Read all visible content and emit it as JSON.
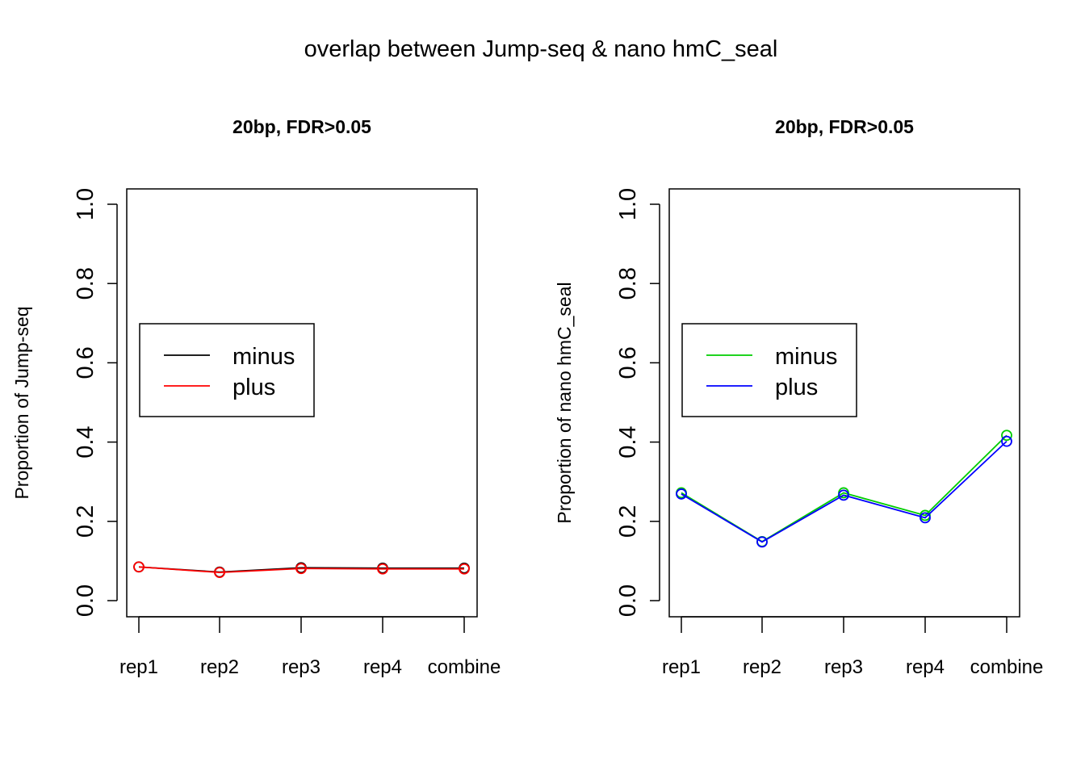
{
  "title": "overlap between Jump-seq & nano hmC_seal",
  "chart_data": [
    {
      "type": "line",
      "title": "20bp, FDR>0.05",
      "xlabel": "",
      "ylabel": "Proportion of Jump-seq",
      "categories": [
        "rep1",
        "rep2",
        "rep3",
        "rep4",
        "combine"
      ],
      "ylim": [
        0,
        1
      ],
      "yticks": [
        "0.0",
        "0.2",
        "0.4",
        "0.6",
        "0.8",
        "1.0"
      ],
      "legend_position": "left",
      "grid": false,
      "series": [
        {
          "name": "minus",
          "color": "#000000",
          "values": [
            0.085,
            0.072,
            0.083,
            0.082,
            0.082
          ]
        },
        {
          "name": "plus",
          "color": "#ff0000",
          "values": [
            0.085,
            0.071,
            0.081,
            0.08,
            0.08
          ]
        }
      ]
    },
    {
      "type": "line",
      "title": "20bp, FDR>0.05",
      "xlabel": "",
      "ylabel": "Proportion of nano hmC_seal",
      "categories": [
        "rep1",
        "rep2",
        "rep3",
        "rep4",
        "combine"
      ],
      "ylim": [
        0,
        1
      ],
      "yticks": [
        "0.0",
        "0.2",
        "0.4",
        "0.6",
        "0.8",
        "1.0"
      ],
      "legend_position": "left",
      "grid": false,
      "series": [
        {
          "name": "minus",
          "color": "#00cd00",
          "values": [
            0.272,
            0.149,
            0.272,
            0.215,
            0.417
          ]
        },
        {
          "name": "plus",
          "color": "#0000ff",
          "values": [
            0.269,
            0.148,
            0.266,
            0.209,
            0.402
          ]
        }
      ]
    }
  ]
}
